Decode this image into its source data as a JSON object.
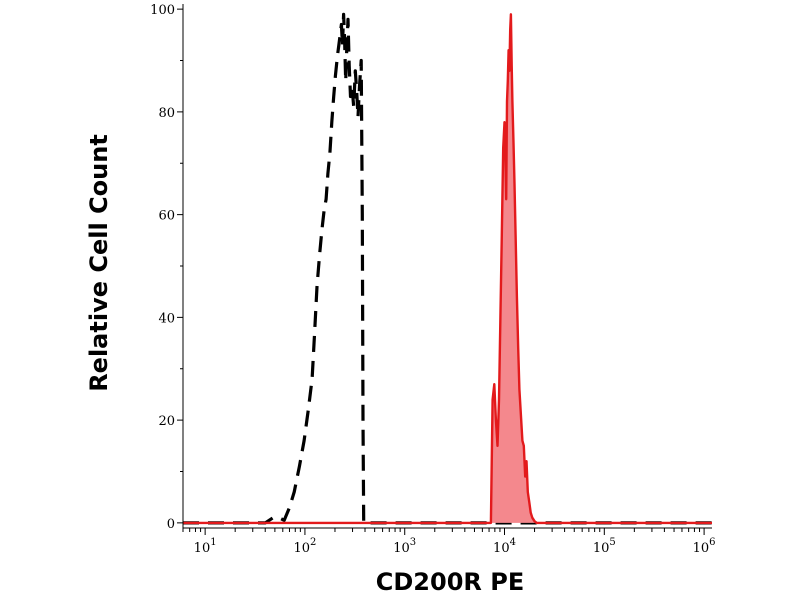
{
  "chart_data": {
    "type": "area",
    "xlabel": "CD200R PE",
    "ylabel": "Relative Cell Count",
    "xscale": "log",
    "xlim": [
      6,
      1200000
    ],
    "ylim": [
      -1,
      101
    ],
    "x_ticks": [
      {
        "value": 10,
        "base": "10",
        "exp": "1"
      },
      {
        "value": 100,
        "base": "10",
        "exp": "2"
      },
      {
        "value": 1000,
        "base": "10",
        "exp": "3"
      },
      {
        "value": 10000,
        "base": "10",
        "exp": "4"
      },
      {
        "value": 100000,
        "base": "10",
        "exp": "5"
      },
      {
        "value": 1000000,
        "base": "10",
        "exp": "6"
      }
    ],
    "y_ticks": [
      {
        "value": 0,
        "label": "0"
      },
      {
        "value": 20,
        "label": "20"
      },
      {
        "value": 40,
        "label": "40"
      },
      {
        "value": 60,
        "label": "60"
      },
      {
        "value": 80,
        "label": "80"
      },
      {
        "value": 100,
        "label": "100"
      }
    ],
    "grid": false,
    "series": [
      {
        "style": "dashed",
        "color": "#000000",
        "fill": "none",
        "points": [
          [
            6,
            0
          ],
          [
            40,
            0
          ],
          [
            48,
            1
          ],
          [
            55,
            1
          ],
          [
            62,
            0.5
          ],
          [
            70,
            3
          ],
          [
            78,
            6
          ],
          [
            88,
            11
          ],
          [
            98,
            16
          ],
          [
            108,
            22
          ],
          [
            118,
            28
          ],
          [
            125,
            37
          ],
          [
            132,
            46
          ],
          [
            140,
            52
          ],
          [
            148,
            57
          ],
          [
            156,
            61
          ],
          [
            163,
            63
          ],
          [
            170,
            68
          ],
          [
            178,
            72
          ],
          [
            186,
            78
          ],
          [
            194,
            83
          ],
          [
            202,
            87
          ],
          [
            212,
            91
          ],
          [
            222,
            94
          ],
          [
            232,
            97
          ],
          [
            238,
            93
          ],
          [
            244,
            99
          ],
          [
            250,
            94
          ],
          [
            256,
            86
          ],
          [
            262,
            92
          ],
          [
            270,
            98
          ],
          [
            278,
            89
          ],
          [
            286,
            83
          ],
          [
            296,
            85
          ],
          [
            308,
            81
          ],
          [
            320,
            88
          ],
          [
            330,
            84
          ],
          [
            340,
            79
          ],
          [
            352,
            85
          ],
          [
            366,
            90
          ],
          [
            376,
            60
          ],
          [
            382,
            20
          ],
          [
            388,
            0
          ],
          [
            7000,
            0
          ],
          [
            8000,
            0
          ],
          [
            9500,
            0
          ],
          [
            12000,
            0
          ],
          [
            20000,
            0
          ],
          [
            100000,
            0
          ],
          [
            1200000,
            0
          ]
        ]
      },
      {
        "style": "solid",
        "color": "#e31a1c",
        "fill": "#f4888d",
        "points": [
          [
            6,
            0
          ],
          [
            7000,
            0
          ],
          [
            7300,
            0
          ],
          [
            7600,
            24
          ],
          [
            7900,
            27
          ],
          [
            8200,
            20
          ],
          [
            8500,
            15
          ],
          [
            8800,
            24
          ],
          [
            9100,
            40
          ],
          [
            9400,
            56
          ],
          [
            9700,
            73
          ],
          [
            10000,
            78
          ],
          [
            10200,
            71
          ],
          [
            10400,
            63
          ],
          [
            10600,
            82
          ],
          [
            10800,
            86
          ],
          [
            11000,
            92
          ],
          [
            11200,
            88
          ],
          [
            11400,
            96
          ],
          [
            11600,
            99
          ],
          [
            11800,
            89
          ],
          [
            12000,
            82
          ],
          [
            12300,
            74
          ],
          [
            12600,
            66
          ],
          [
            12900,
            56
          ],
          [
            13300,
            44
          ],
          [
            13700,
            34
          ],
          [
            14100,
            26
          ],
          [
            14600,
            21
          ],
          [
            15100,
            16
          ],
          [
            15600,
            15
          ],
          [
            16100,
            9
          ],
          [
            16600,
            12
          ],
          [
            17100,
            6
          ],
          [
            17700,
            4
          ],
          [
            18300,
            2
          ],
          [
            19000,
            1
          ],
          [
            20000,
            0.3
          ],
          [
            21000,
            0
          ],
          [
            1200000,
            0
          ]
        ]
      }
    ]
  }
}
